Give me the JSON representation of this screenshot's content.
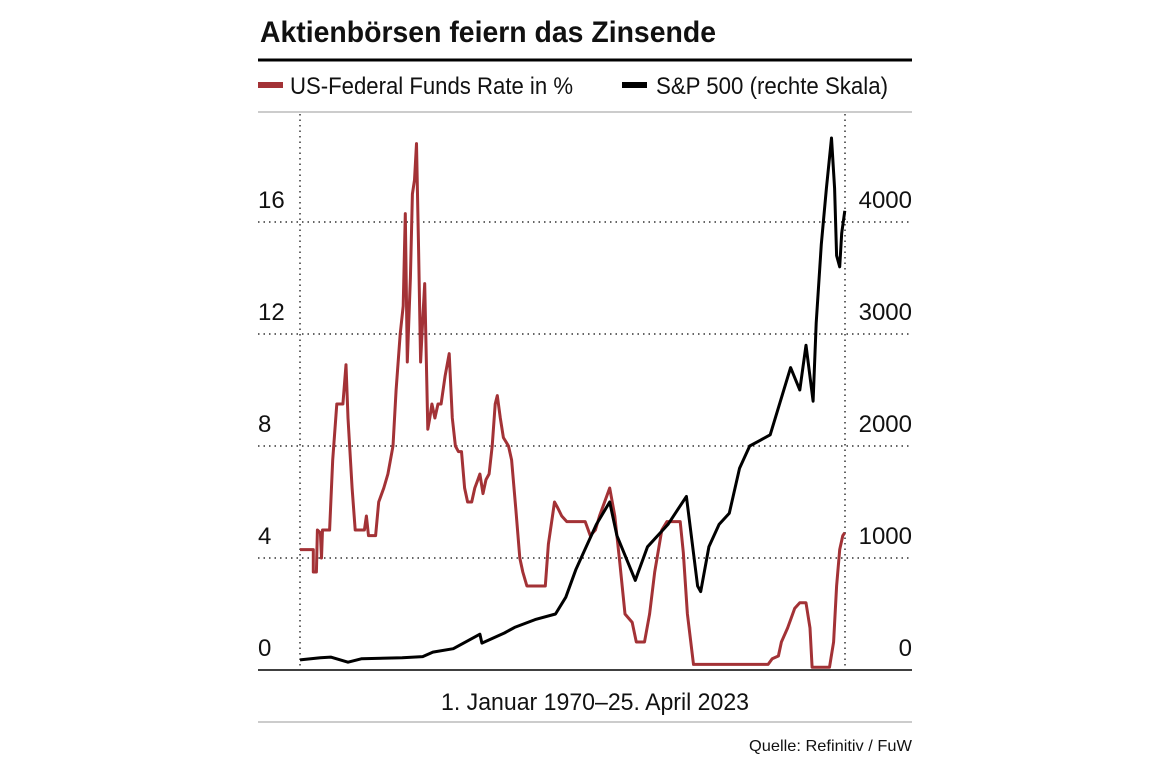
{
  "chart_data": {
    "type": "line",
    "title": "Aktienbörsen feiern das Zinsende",
    "xlabel": "1. Januar 1970–25. April 2023",
    "source": "Quelle: Refinitiv / FuW",
    "xlim": [
      1970,
      2023.32
    ],
    "ylim": [
      0,
      20
    ],
    "yticks": [
      0,
      4,
      8,
      12,
      16
    ],
    "y2lim": [
      0,
      5000
    ],
    "y2ticks": [
      0,
      1000,
      2000,
      3000,
      4000
    ],
    "grid": true,
    "series": [
      {
        "name": "US-Federal Funds Rate in %",
        "color": "#a33236",
        "x": [
          1970.0,
          1971.3,
          1971.3,
          1971.6,
          1971.7,
          1972.0,
          1972.1,
          1972.2,
          1972.9,
          1973.2,
          1973.6,
          1974.2,
          1974.5,
          1974.7,
          1975.1,
          1975.4,
          1976.3,
          1976.5,
          1976.7,
          1977.4,
          1977.7,
          1978.2,
          1978.6,
          1979.1,
          1979.4,
          1979.8,
          1980.1,
          1980.3,
          1980.5,
          1980.8,
          1981.0,
          1981.2,
          1981.4,
          1981.6,
          1981.8,
          1982.0,
          1982.2,
          1982.5,
          1982.7,
          1982.9,
          1983.2,
          1983.5,
          1983.8,
          1984.2,
          1984.6,
          1984.9,
          1985.2,
          1985.5,
          1985.8,
          1986.1,
          1986.4,
          1986.8,
          1987.1,
          1987.4,
          1987.6,
          1987.9,
          1988.2,
          1988.5,
          1988.8,
          1989.1,
          1989.3,
          1989.6,
          1989.9,
          1990.4,
          1990.7,
          1991.1,
          1991.5,
          1991.8,
          1992.2,
          1992.6,
          1994.0,
          1994.3,
          1994.7,
          1994.9,
          1995.2,
          1995.6,
          1996.1,
          1996.6,
          1997.9,
          1998.4,
          1998.9,
          1999.3,
          1999.8,
          2000.3,
          2000.8,
          2001.3,
          2001.8,
          2002.5,
          2002.9,
          2003.7,
          2004.2,
          2004.7,
          2005.4,
          2005.9,
          2007.2,
          2007.5,
          2007.9,
          2008.5,
          2015.8,
          2016.2,
          2016.8,
          2017.1,
          2017.7,
          2018.4,
          2018.9,
          2019.5,
          2019.9,
          2020.1,
          2021.8,
          2022.2,
          2022.5,
          2022.8,
          2023.1,
          2023.3
        ],
        "values": [
          4.3,
          4.3,
          3.5,
          3.5,
          5.0,
          4.9,
          4.0,
          5.0,
          5.0,
          7.5,
          9.5,
          9.5,
          10.9,
          9.0,
          6.5,
          5.0,
          5.0,
          5.5,
          4.8,
          4.8,
          6.0,
          6.5,
          7.0,
          8.0,
          10.0,
          12.0,
          13.0,
          16.3,
          11.0,
          14.0,
          17.0,
          17.5,
          18.8,
          15.0,
          11.0,
          12.5,
          13.8,
          8.6,
          9.0,
          9.5,
          9.0,
          9.5,
          9.5,
          10.5,
          11.3,
          9.0,
          8.0,
          7.8,
          7.8,
          6.5,
          6.0,
          6.0,
          6.5,
          6.8,
          7.0,
          6.3,
          6.8,
          7.0,
          8.0,
          9.5,
          9.8,
          9.0,
          8.3,
          8.0,
          7.5,
          5.8,
          4.0,
          3.5,
          3.0,
          3.0,
          3.0,
          4.5,
          5.5,
          6.0,
          5.8,
          5.5,
          5.3,
          5.3,
          5.3,
          4.8,
          5.0,
          5.5,
          6.0,
          6.5,
          5.5,
          3.8,
          2.0,
          1.7,
          1.0,
          1.0,
          2.0,
          3.5,
          5.0,
          5.3,
          5.3,
          4.2,
          2.0,
          0.2,
          0.2,
          0.4,
          0.5,
          1.0,
          1.5,
          2.2,
          2.4,
          2.4,
          1.5,
          0.1,
          0.1,
          1.0,
          3.0,
          4.3,
          4.8,
          4.9
        ]
      },
      {
        "name": "S&P 500 (rechte Skala)",
        "color": "#000000",
        "axis": "y2",
        "x": [
          1970.0,
          1972.0,
          1973.0,
          1974.7,
          1976.0,
          1980.0,
          1982.0,
          1983.0,
          1985.0,
          1987.6,
          1987.8,
          1990.0,
          1991.0,
          1993.0,
          1995.0,
          1996.0,
          1997.0,
          1998.0,
          1999.0,
          2000.3,
          2001.0,
          2002.8,
          2003.0,
          2004.0,
          2006.0,
          2007.8,
          2008.9,
          2009.2,
          2010.0,
          2011.0,
          2012.0,
          2013.0,
          2014.0,
          2015.0,
          2016.0,
          2017.0,
          2018.0,
          2018.9,
          2019.5,
          2020.2,
          2020.5,
          2021.0,
          2021.5,
          2022.0,
          2022.3,
          2022.5,
          2022.8,
          2023.0,
          2023.3
        ],
        "values": [
          90,
          110,
          115,
          70,
          100,
          110,
          120,
          160,
          190,
          320,
          240,
          330,
          380,
          450,
          500,
          650,
          900,
          1100,
          1300,
          1500,
          1200,
          800,
          850,
          1100,
          1300,
          1550,
          750,
          700,
          1100,
          1300,
          1400,
          1800,
          2000,
          2050,
          2100,
          2400,
          2700,
          2500,
          2900,
          2400,
          3100,
          3800,
          4300,
          4750,
          4300,
          3700,
          3600,
          3900,
          4100
        ]
      }
    ]
  }
}
